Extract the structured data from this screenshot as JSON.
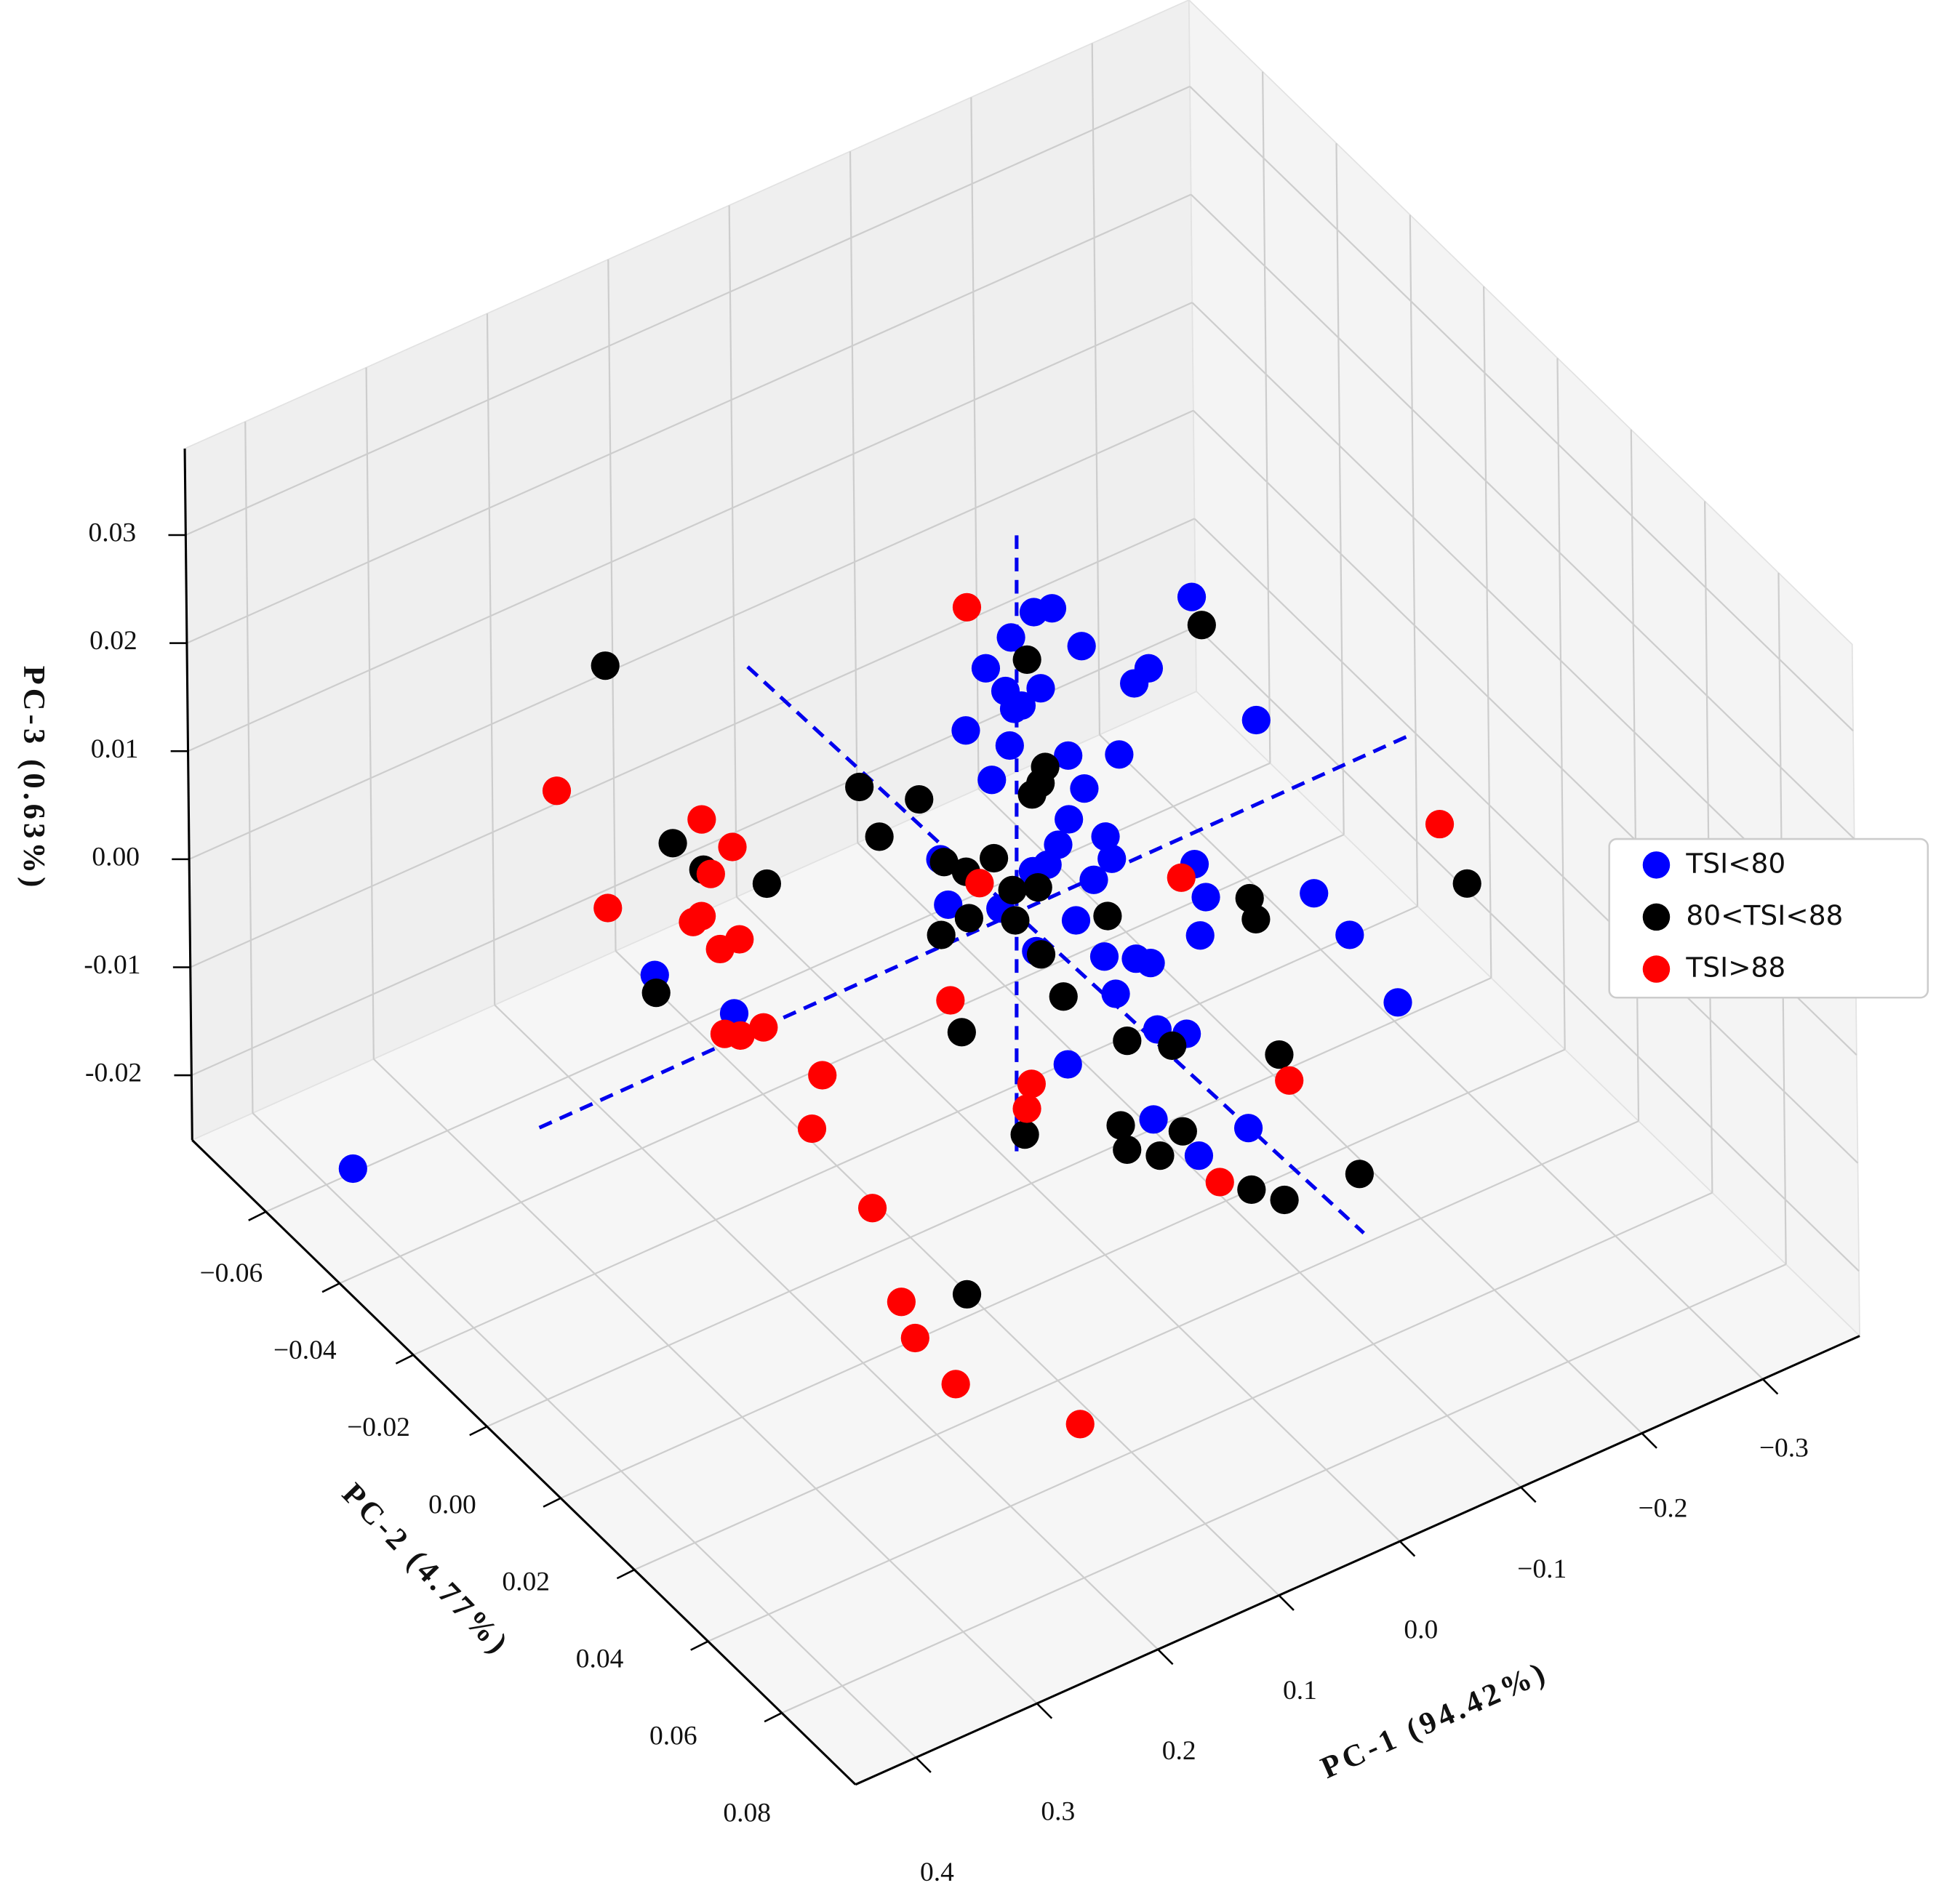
{
  "chart_data": {
    "type": "scatter3d",
    "x_label": "PC-1 (94.42%)",
    "y_label": "PC-2 (4.77%)",
    "z_label": "PC-3 (0.63%)",
    "xlim": [
      -0.38,
      0.45
    ],
    "ylim": [
      -0.08,
      0.1
    ],
    "zlim": [
      -0.026,
      0.038
    ],
    "xticks": [
      {
        "value": -0.3,
        "label": "−0.3"
      },
      {
        "value": -0.2,
        "label": "−0.2"
      },
      {
        "value": -0.1,
        "label": "−0.1"
      },
      {
        "value": 0,
        "label": "0.0"
      },
      0.1,
      0.2,
      0.3,
      0.4
    ],
    "yticks": [
      {
        "value": -0.06,
        "label": "−0.06"
      },
      {
        "value": -0.04,
        "label": "−0.04"
      },
      {
        "value": -0.02,
        "label": "−0.02"
      },
      {
        "value": 0,
        "label": "0.00"
      },
      0.02,
      0.04,
      0.06,
      0.08
    ],
    "zticks": [
      -0.02,
      -0.01,
      {
        "value": 0,
        "label": "0.00"
      },
      0.01,
      0.02,
      0.03
    ],
    "grid": true,
    "legend": "right",
    "series": [
      {
        "name": "TSI<80",
        "color": "#0000ff",
        "x": [
          -0.167,
          -0.052,
          -0.037,
          -0.018,
          -0.076,
          0.003,
          -0.131,
          -0.119,
          -0.013,
          -0.042,
          -0.026,
          -0.02,
          0.02,
          -0.219,
          -0.016,
          -0.004,
          -0.046,
          0.059,
          -0.017,
          -0.004,
          -0.034,
          0.005,
          0.014,
          0.026,
          0.102,
          -0.039,
          -0.107,
          -0.024,
          -0.116,
          -0.205,
          0.096,
          0.053,
          -0.009,
          -0.111,
          -0.234,
          -0.032,
          -0.058,
          -0.07,
          0.024,
          0.338,
          -0.041,
          -0.273,
          0.273,
          -0.075,
          -0.099,
          0.059,
          -0.011,
          -0.089,
          -0.048,
          0.408
        ],
        "y": [
          -0.01,
          -0.01,
          -0.01,
          -0.01,
          -0.01,
          -0.01,
          -0.01,
          -0.01,
          -0.01,
          -0.01,
          -0.01,
          -0.01,
          -0.01,
          -0.01,
          -0.01,
          0.01,
          0.01,
          0.01,
          0.01,
          0.01,
          0.01,
          0.01,
          0.01,
          0.01,
          0.01,
          0.01,
          0.01,
          0.01,
          0.01,
          0.01,
          0.01,
          0.01,
          0.01,
          0.01,
          0.01,
          0.01,
          0.01,
          0.01,
          0.01,
          0.01,
          0.01,
          0.01,
          0.01,
          0.01,
          0.01,
          0.03,
          0.03,
          0.03,
          0.03,
          -0.05
        ],
        "z": [
          0.0166,
          0.0213,
          0.0217,
          0.0203,
          0.0166,
          0.0185,
          0.0118,
          0.011,
          0.0156,
          0.0144,
          0.0136,
          0.0136,
          0.0136,
          0.0026,
          0.0104,
          0.0167,
          0.0147,
          0.0176,
          0.013,
          0.0108,
          0.0077,
          0.0089,
          0.0075,
          0.0075,
          0.0124,
          0.0054,
          0.0015,
          0.0042,
          -0.002,
          -0.0061,
          0.0079,
          0.0054,
          0.0012,
          -0.0053,
          -0.0114,
          -0.0033,
          -0.0048,
          -0.0058,
          0,
          0.0135,
          -0.0072,
          -0.0196,
          0.0067,
          -0.0122,
          -0.0138,
          -0.0021,
          -0.0107,
          -0.0154,
          -0.0159,
          -0.0208
        ]
      },
      {
        "name": "80<TSI<88",
        "color": "#000000",
        "x": [
          0.316,
          -0.175,
          -0.031,
          0.015,
          0.019,
          0.026,
          0.168,
          0.119,
          0.322,
          0.152,
          0.297,
          0.245,
          0.099,
          0.081,
          0.058,
          -0.331,
          -0.152,
          -0.157,
          0.043,
          0.022,
          -0.035,
          0.041,
          0.102,
          0.079,
          0.02,
          0.337,
          0.002,
          0.086,
          -0.05,
          -0.087,
          -0.115,
          0.016,
          -0.035,
          0.095,
          0.011,
          -0.016,
          -0.091,
          -0.118,
          -0.18,
          0.204
        ],
        "y": [
          -0.01,
          -0.01,
          -0.01,
          0.01,
          0.01,
          0.01,
          0.01,
          0.01,
          0.01,
          0.01,
          0.01,
          0.01,
          0.01,
          0.01,
          0.01,
          0.01,
          0.01,
          0.01,
          0.01,
          0.01,
          0.01,
          0.01,
          0.01,
          0.01,
          0.01,
          0.01,
          0.01,
          0.01,
          0.01,
          0.01,
          0.03,
          0.03,
          0.03,
          0.03,
          0.03,
          0.03,
          0.03,
          0.03,
          0.03,
          0.05
        ],
        "z": [
          0.0344,
          0.0136,
          0.0176,
          0.0166,
          0.0153,
          0.0146,
          0.0224,
          0.0188,
          0.0249,
          0.017,
          0.0212,
          0.0173,
          0.012,
          0.0102,
          0.0103,
          -0.0115,
          -0.0039,
          -0.0061,
          0.0066,
          0.0058,
          0.0003,
          0.0037,
          0.0054,
          0.0058,
          -0.0005,
          0.0118,
          -0.0053,
          -0.0044,
          -0.012,
          -0.0143,
          -0.0099,
          -0.0099,
          -0.013,
          -0.0068,
          -0.0124,
          -0.0143,
          -0.0212,
          -0.0235,
          -0.0242,
          -0.0095
        ]
      },
      {
        "name": "TSI>88",
        "color": "#ff0000",
        "x": [
          0.018,
          0.417,
          0.298,
          0.273,
          0.291,
          0.376,
          -0.096,
          0.07,
          0.299,
          0.306,
          0.268,
          0.284,
          -0.309,
          0.095,
          0.281,
          0.268,
          0.249,
          0.261,
          0.089,
          0.093,
          0.27,
          -0.123,
          -0.065,
          0.221,
          0.258,
          0.247,
          0.244,
          0.142
        ],
        "y": [
          -0.01,
          0.01,
          0.01,
          0.01,
          0.01,
          0.01,
          0.01,
          0.01,
          0.01,
          0.01,
          0.01,
          0.01,
          0.01,
          0.01,
          0.01,
          0.01,
          0.01,
          0.03,
          0.03,
          0.03,
          0.03,
          0.03,
          0.03,
          0.03,
          0.05,
          0.05,
          0.06,
          0.06
        ],
        "z": [
          0.0249,
          0.0345,
          0.0259,
          0.0221,
          0.0205,
          0.0216,
          0.0008,
          0.0086,
          0.017,
          0.0168,
          0.0133,
          0.0132,
          -0.0049,
          -0.001,
          0.0052,
          0.0044,
          0.0042,
          0.007,
          -0.0024,
          -0.0045,
          0.0025,
          -0.0127,
          -0.0192,
          -0.0073,
          -0.0075,
          -0.0114,
          -0.0125,
          -0.0213
        ]
      }
    ]
  }
}
